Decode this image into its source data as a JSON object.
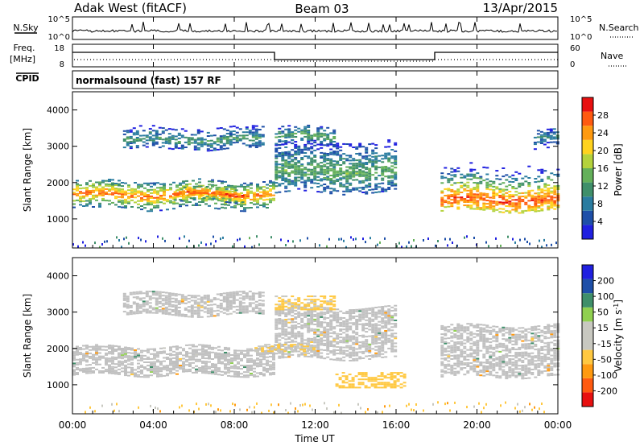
{
  "header": {
    "station": "Adak West (fitACF)",
    "beam": "Beam 03",
    "date": "13/Apr/2015"
  },
  "strip": {
    "nsky_label": "N.Sky",
    "nsky_ticks": [
      "10^5",
      "10^0"
    ],
    "nsearch_label": "N.Search",
    "nsearch_ticks": [
      "10^5",
      "10^0"
    ],
    "freq_label": "Freq.",
    "freq_unit": "[MHz]",
    "freq_ticks": [
      "18",
      "8"
    ],
    "nave_label": "Nave",
    "nave_ticks": [
      "60",
      "0"
    ],
    "cpid_label": "CPID",
    "cpid_text": "normalsound (fast) 157 RF"
  },
  "colors": {
    "power_scale": [
      "#2020e0",
      "#1e4fa8",
      "#2a7ca0",
      "#3f8f6a",
      "#64b05a",
      "#b4d23c",
      "#ffd21e",
      "#ff9a10",
      "#ff5a10",
      "#e81010"
    ],
    "velocity_scale": [
      "#e81010",
      "#ff5a10",
      "#ff9a10",
      "#ffc840",
      "#c8c8c0",
      "#c8c8c0",
      "#90d050",
      "#3f8f6a",
      "#1e4fa8",
      "#2020e0"
    ],
    "ground_scatter": "#c0c0c0"
  },
  "chart_data": [
    {
      "type": "heatmap",
      "panel": "power",
      "ylabel": "Slant Range [km]",
      "yticks": [
        "1000",
        "2000",
        "3000",
        "4000"
      ],
      "ylim": [
        200,
        4500
      ],
      "xlim_hours": [
        0,
        24
      ],
      "colorbar_label": "Power [dB]",
      "colorbar_ticks": [
        "4",
        "8",
        "12",
        "16",
        "20",
        "24",
        "28"
      ],
      "colorbar_range": [
        0,
        32
      ],
      "bands": [
        {
          "t_start": 0,
          "t_end": 10,
          "r_low": 1250,
          "r_high": 2050,
          "core": 1650,
          "peak_db": 26
        },
        {
          "t_start": 5,
          "t_end": 8.5,
          "r_low": 1450,
          "r_high": 1850,
          "core": 1650,
          "peak_db": 30
        },
        {
          "t_start": 10,
          "t_end": 16,
          "r_low": 1700,
          "r_high": 3100,
          "core": 2300,
          "peak_db": 14
        },
        {
          "t_start": 2.5,
          "t_end": 9.5,
          "r_low": 2900,
          "r_high": 3500,
          "core": 3150,
          "peak_db": 12
        },
        {
          "t_start": 10,
          "t_end": 13,
          "r_low": 3000,
          "r_high": 3500,
          "core": 3250,
          "peak_db": 14
        },
        {
          "t_start": 18.2,
          "t_end": 24,
          "r_low": 1200,
          "r_high": 2600,
          "core": 1500,
          "peak_db": 28
        },
        {
          "t_start": 22.8,
          "t_end": 24,
          "r_low": 2900,
          "r_high": 3400,
          "core": 3200,
          "peak_db": 10
        }
      ]
    },
    {
      "type": "heatmap",
      "panel": "velocity",
      "ylabel": "Slant Range [km]",
      "yticks": [
        "1000",
        "2000",
        "3000",
        "4000"
      ],
      "ylim": [
        200,
        4500
      ],
      "xlim_hours": [
        0,
        24
      ],
      "colorbar_label": "Velocity [m s^-1]",
      "colorbar_ticks": [
        "-200",
        "-100",
        "-50",
        "-15",
        "15",
        "50",
        "100",
        "200"
      ],
      "colorbar_range": [
        -250,
        250
      ],
      "ground_scatter_bands": [
        {
          "t_start": 0,
          "t_end": 10,
          "r_low": 1250,
          "r_high": 2050
        },
        {
          "t_start": 10,
          "t_end": 16,
          "r_low": 1700,
          "r_high": 3100
        },
        {
          "t_start": 18.2,
          "t_end": 24,
          "r_low": 1200,
          "r_high": 2600
        },
        {
          "t_start": 2.5,
          "t_end": 9.5,
          "r_low": 2900,
          "r_high": 3500
        }
      ],
      "ionospheric_patches": [
        {
          "t_start": 10,
          "t_end": 13,
          "r_low": 3050,
          "r_high": 3450,
          "velocity": -60
        },
        {
          "t_start": 9,
          "t_end": 12,
          "r_low": 1900,
          "r_high": 2100,
          "velocity": -50
        },
        {
          "t_start": 13,
          "t_end": 16.5,
          "r_low": 900,
          "r_high": 1350,
          "velocity": -80
        }
      ]
    }
  ],
  "x_axis": {
    "label": "Time UT",
    "ticks": [
      "00:00",
      "04:00",
      "08:00",
      "12:00",
      "16:00",
      "20:00",
      "00:00"
    ]
  }
}
